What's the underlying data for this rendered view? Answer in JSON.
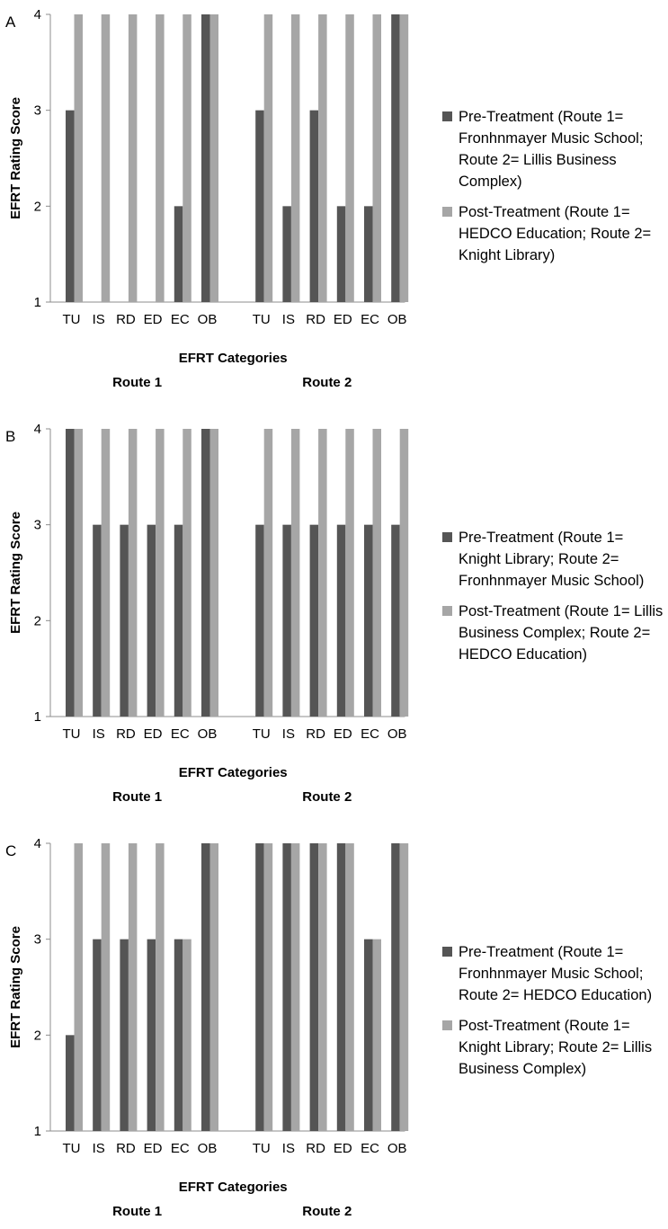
{
  "colors": {
    "pre": "#555555",
    "post": "#a6a6a6",
    "axis": "#8c8c8c"
  },
  "panels": [
    {
      "letter": "A",
      "legend": [
        "Pre-Treatment (Route 1= Fronhnmayer Music School; Route 2= Lillis Business Complex)",
        "Post-Treatment (Route 1= HEDCO Education; Route 2= Knight Library)"
      ]
    },
    {
      "letter": "B",
      "legend": [
        "Pre-Treatment (Route 1= Knight Library; Route 2= Fronhnmayer Music School)",
        "Post-Treatment (Route 1= Lillis Business Complex; Route 2= HEDCO Education)"
      ]
    },
    {
      "letter": "C",
      "legend": [
        "Pre-Treatment (Route 1= Fronhnmayer Music School; Route 2= HEDCO Education)",
        "Post-Treatment (Route 1= Knight Library; Route 2= Lillis Business Complex)"
      ]
    }
  ],
  "chart_data": [
    {
      "type": "bar",
      "panel": "A",
      "ylabel": "EFRT Rating Score",
      "xlabel": "EFRT Categories",
      "ylim": [
        1,
        4
      ],
      "yticks": [
        "1",
        "2",
        "3",
        "4"
      ],
      "groups": [
        {
          "name": "Route 1",
          "categories": [
            "TU",
            "IS",
            "RD",
            "ED",
            "EC",
            "OB"
          ]
        },
        {
          "name": "Route 2",
          "categories": [
            "TU",
            "IS",
            "RD",
            "ED",
            "EC",
            "OB"
          ]
        }
      ],
      "series": [
        {
          "name": "Pre-Treatment",
          "values": [
            [
              3,
              1,
              1,
              1,
              2,
              4
            ],
            [
              3,
              2,
              3,
              2,
              2,
              4
            ]
          ]
        },
        {
          "name": "Post-Treatment",
          "values": [
            [
              4,
              4,
              4,
              4,
              4,
              4
            ],
            [
              4,
              4,
              4,
              4,
              4,
              4
            ]
          ]
        }
      ]
    },
    {
      "type": "bar",
      "panel": "B",
      "ylabel": "EFRT Rating Score",
      "xlabel": "EFRT Categories",
      "ylim": [
        1,
        4
      ],
      "yticks": [
        "1",
        "2",
        "3",
        "4"
      ],
      "groups": [
        {
          "name": "Route 1",
          "categories": [
            "TU",
            "IS",
            "RD",
            "ED",
            "EC",
            "OB"
          ]
        },
        {
          "name": "Route 2",
          "categories": [
            "TU",
            "IS",
            "RD",
            "ED",
            "EC",
            "OB"
          ]
        }
      ],
      "series": [
        {
          "name": "Pre-Treatment",
          "values": [
            [
              4,
              3,
              3,
              3,
              3,
              4
            ],
            [
              3,
              3,
              3,
              3,
              3,
              3
            ]
          ]
        },
        {
          "name": "Post-Treatment",
          "values": [
            [
              4,
              4,
              4,
              4,
              4,
              4
            ],
            [
              4,
              4,
              4,
              4,
              4,
              4
            ]
          ]
        }
      ]
    },
    {
      "type": "bar",
      "panel": "C",
      "ylabel": "EFRT Rating Score",
      "xlabel": "EFRT Categories",
      "ylim": [
        1,
        4
      ],
      "yticks": [
        "1",
        "2",
        "3",
        "4"
      ],
      "groups": [
        {
          "name": "Route 1",
          "categories": [
            "TU",
            "IS",
            "RD",
            "ED",
            "EC",
            "OB"
          ]
        },
        {
          "name": "Route 2",
          "categories": [
            "TU",
            "IS",
            "RD",
            "ED",
            "EC",
            "OB"
          ]
        }
      ],
      "series": [
        {
          "name": "Pre-Treatment",
          "values": [
            [
              2,
              3,
              3,
              3,
              3,
              4
            ],
            [
              4,
              4,
              4,
              4,
              3,
              4
            ]
          ]
        },
        {
          "name": "Post-Treatment",
          "values": [
            [
              4,
              4,
              4,
              4,
              3,
              4
            ],
            [
              4,
              4,
              4,
              4,
              3,
              4
            ]
          ]
        }
      ]
    }
  ]
}
